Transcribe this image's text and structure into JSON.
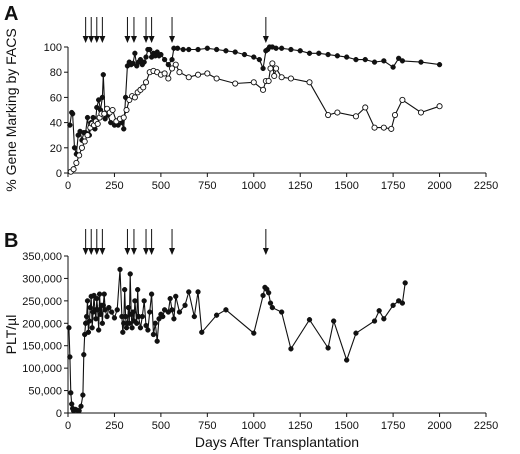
{
  "chart_data": [
    {
      "type": "line",
      "panel_label": "A",
      "ylabel": "% Gene Marking by FACS",
      "xlabel": "",
      "xlim": [
        0,
        2250
      ],
      "ylim": [
        0,
        100
      ],
      "xticks": [
        "0",
        "250",
        "500",
        "750",
        "1000",
        "1250",
        "1500",
        "1750",
        "2000",
        "2250"
      ],
      "yticks": [
        "0",
        "20",
        "40",
        "60",
        "80",
        "100"
      ],
      "grid": false,
      "legend": "none",
      "arrows_at_x": [
        95,
        125,
        155,
        185,
        320,
        355,
        420,
        450,
        560,
        1065
      ],
      "series": [
        {
          "marker": "filled",
          "points": [
            [
              10,
              38
            ],
            [
              20,
              48
            ],
            [
              25,
              47
            ],
            [
              35,
              20
            ],
            [
              45,
              15
            ],
            [
              55,
              30
            ],
            [
              65,
              33
            ],
            [
              75,
              26
            ],
            [
              85,
              32
            ],
            [
              95,
              32
            ],
            [
              105,
              44
            ],
            [
              115,
              30
            ],
            [
              125,
              40
            ],
            [
              135,
              44
            ],
            [
              145,
              35
            ],
            [
              155,
              52
            ],
            [
              165,
              58
            ],
            [
              175,
              50
            ],
            [
              185,
              60
            ],
            [
              190,
              78
            ],
            [
              200,
              43
            ],
            [
              215,
              46
            ],
            [
              230,
              40
            ],
            [
              250,
              38
            ],
            [
              270,
              38
            ],
            [
              290,
              40
            ],
            [
              300,
              35
            ],
            [
              310,
              60
            ],
            [
              320,
              85
            ],
            [
              330,
              88
            ],
            [
              340,
              86
            ],
            [
              350,
              87
            ],
            [
              360,
              95
            ],
            [
              370,
              85
            ],
            [
              380,
              88
            ],
            [
              390,
              90
            ],
            [
              400,
              86
            ],
            [
              410,
              88
            ],
            [
              420,
              92
            ],
            [
              430,
              98
            ],
            [
              440,
              98
            ],
            [
              450,
              92
            ],
            [
              460,
              95
            ],
            [
              470,
              93
            ],
            [
              480,
              96
            ],
            [
              490,
              93
            ],
            [
              500,
              94
            ],
            [
              520,
              90
            ],
            [
              540,
              86
            ],
            [
              560,
              90
            ],
            [
              570,
              99
            ],
            [
              590,
              99
            ],
            [
              620,
              98
            ],
            [
              650,
              98
            ],
            [
              700,
              98
            ],
            [
              750,
              99
            ],
            [
              800,
              98
            ],
            [
              850,
              97
            ],
            [
              900,
              96
            ],
            [
              950,
              94
            ],
            [
              1000,
              92
            ],
            [
              1030,
              90
            ],
            [
              1050,
              83
            ],
            [
              1065,
              97
            ],
            [
              1075,
              98
            ],
            [
              1085,
              100
            ],
            [
              1100,
              100
            ],
            [
              1120,
              99
            ],
            [
              1150,
              99
            ],
            [
              1200,
              98
            ],
            [
              1250,
              97
            ],
            [
              1300,
              95
            ],
            [
              1350,
              95
            ],
            [
              1400,
              94
            ],
            [
              1450,
              93
            ],
            [
              1500,
              92
            ],
            [
              1550,
              90
            ],
            [
              1600,
              90
            ],
            [
              1650,
              88
            ],
            [
              1700,
              89
            ],
            [
              1750,
              84
            ],
            [
              1780,
              91
            ],
            [
              1800,
              89
            ],
            [
              1900,
              88
            ],
            [
              2000,
              86
            ]
          ]
        },
        {
          "marker": "open",
          "points": [
            [
              15,
              1
            ],
            [
              30,
              3
            ],
            [
              45,
              8
            ],
            [
              60,
              14
            ],
            [
              75,
              20
            ],
            [
              90,
              25
            ],
            [
              105,
              30
            ],
            [
              120,
              36
            ],
            [
              130,
              39
            ],
            [
              140,
              38
            ],
            [
              150,
              41
            ],
            [
              160,
              39
            ],
            [
              170,
              44
            ],
            [
              180,
              47
            ],
            [
              195,
              47
            ],
            [
              210,
              51
            ],
            [
              225,
              48
            ],
            [
              240,
              50
            ],
            [
              260,
              41
            ],
            [
              280,
              43
            ],
            [
              300,
              44
            ],
            [
              315,
              50
            ],
            [
              330,
              58
            ],
            [
              345,
              61
            ],
            [
              360,
              60
            ],
            [
              375,
              64
            ],
            [
              390,
              66
            ],
            [
              405,
              68
            ],
            [
              420,
              72
            ],
            [
              440,
              80
            ],
            [
              460,
              81
            ],
            [
              480,
              80
            ],
            [
              500,
              78
            ],
            [
              520,
              79
            ],
            [
              540,
              75
            ],
            [
              560,
              83
            ],
            [
              580,
              86
            ],
            [
              600,
              80
            ],
            [
              650,
              76
            ],
            [
              700,
              78
            ],
            [
              750,
              79
            ],
            [
              800,
              75
            ],
            [
              900,
              71
            ],
            [
              1000,
              72
            ],
            [
              1050,
              66
            ],
            [
              1065,
              73
            ],
            [
              1080,
              73
            ],
            [
              1090,
              83
            ],
            [
              1100,
              87
            ],
            [
              1110,
              77
            ],
            [
              1120,
              83
            ],
            [
              1150,
              76
            ],
            [
              1200,
              75
            ],
            [
              1300,
              72
            ],
            [
              1400,
              46
            ],
            [
              1450,
              48
            ],
            [
              1550,
              45
            ],
            [
              1600,
              52
            ],
            [
              1650,
              36
            ],
            [
              1700,
              36
            ],
            [
              1740,
              35
            ],
            [
              1760,
              46
            ],
            [
              1800,
              58
            ],
            [
              1900,
              48
            ],
            [
              2000,
              53
            ]
          ]
        }
      ]
    },
    {
      "type": "line",
      "panel_label": "B",
      "ylabel": "PLT/µl",
      "xlabel": "Days After Transplantation",
      "xlim": [
        0,
        2250
      ],
      "ylim": [
        0,
        350000
      ],
      "xticks": [
        "0",
        "250",
        "500",
        "750",
        "1000",
        "1250",
        "1500",
        "1750",
        "2000",
        "2250"
      ],
      "yticks": [
        "0",
        "50,000",
        "100,000",
        "150,000",
        "200,000",
        "250,000",
        "300,000",
        "350,000"
      ],
      "grid": false,
      "legend": "none",
      "arrows_at_x": [
        95,
        125,
        155,
        185,
        320,
        355,
        420,
        450,
        560,
        1065
      ],
      "series": [
        {
          "marker": "filled",
          "points": [
            [
              5,
              190000
            ],
            [
              10,
              125000
            ],
            [
              15,
              45000
            ],
            [
              20,
              20000
            ],
            [
              25,
              10000
            ],
            [
              30,
              5000
            ],
            [
              40,
              8000
            ],
            [
              50,
              6000
            ],
            [
              60,
              5000
            ],
            [
              70,
              15000
            ],
            [
              80,
              40000
            ],
            [
              85,
              130000
            ],
            [
              90,
              175000
            ],
            [
              95,
              200000
            ],
            [
              100,
              215000
            ],
            [
              105,
              250000
            ],
            [
              110,
              180000
            ],
            [
              115,
              205000
            ],
            [
              120,
              235000
            ],
            [
              125,
              260000
            ],
            [
              130,
              190000
            ],
            [
              135,
              225000
            ],
            [
              140,
              262000
            ],
            [
              145,
              230000
            ],
            [
              150,
              210000
            ],
            [
              155,
              255000
            ],
            [
              160,
              230000
            ],
            [
              165,
              185000
            ],
            [
              170,
              265000
            ],
            [
              175,
              220000
            ],
            [
              180,
              240000
            ],
            [
              185,
              200000
            ],
            [
              190,
              240000
            ],
            [
              195,
              265000
            ],
            [
              200,
              230000
            ],
            [
              210,
              215000
            ],
            [
              220,
              235000
            ],
            [
              235,
              225000
            ],
            [
              250,
              212000
            ],
            [
              265,
              230000
            ],
            [
              280,
              320000
            ],
            [
              290,
              215000
            ],
            [
              295,
              180000
            ],
            [
              300,
              200000
            ],
            [
              305,
              275000
            ],
            [
              310,
              215000
            ],
            [
              315,
              190000
            ],
            [
              320,
              200000
            ],
            [
              325,
              235000
            ],
            [
              330,
              200000
            ],
            [
              335,
              310000
            ],
            [
              340,
              220000
            ],
            [
              345,
              190000
            ],
            [
              350,
              225000
            ],
            [
              355,
              205000
            ],
            [
              360,
              250000
            ],
            [
              370,
              200000
            ],
            [
              375,
              275000
            ],
            [
              380,
              215000
            ],
            [
              390,
              190000
            ],
            [
              400,
              215000
            ],
            [
              410,
              250000
            ],
            [
              420,
              195000
            ],
            [
              430,
              185000
            ],
            [
              440,
              225000
            ],
            [
              450,
              265000
            ],
            [
              460,
              175000
            ],
            [
              470,
              200000
            ],
            [
              480,
              160000
            ],
            [
              490,
              210000
            ],
            [
              500,
              220000
            ],
            [
              510,
              215000
            ],
            [
              520,
              230000
            ],
            [
              540,
              225000
            ],
            [
              550,
              255000
            ],
            [
              560,
              230000
            ],
            [
              570,
              210000
            ],
            [
              580,
              260000
            ],
            [
              600,
              225000
            ],
            [
              630,
              240000
            ],
            [
              650,
              270000
            ],
            [
              680,
              215000
            ],
            [
              700,
              270000
            ],
            [
              720,
              180000
            ],
            [
              800,
              218000
            ],
            [
              850,
              230000
            ],
            [
              1000,
              178000
            ],
            [
              1050,
              262000
            ],
            [
              1060,
              280000
            ],
            [
              1070,
              276000
            ],
            [
              1080,
              268000
            ],
            [
              1090,
              245000
            ],
            [
              1100,
              235000
            ],
            [
              1150,
              225000
            ],
            [
              1200,
              143000
            ],
            [
              1300,
              208000
            ],
            [
              1400,
              145000
            ],
            [
              1430,
              205000
            ],
            [
              1500,
              118000
            ],
            [
              1550,
              178000
            ],
            [
              1650,
              205000
            ],
            [
              1675,
              228000
            ],
            [
              1700,
              210000
            ],
            [
              1750,
              240000
            ],
            [
              1780,
              250000
            ],
            [
              1800,
              245000
            ],
            [
              1815,
              290000
            ]
          ]
        }
      ]
    }
  ]
}
